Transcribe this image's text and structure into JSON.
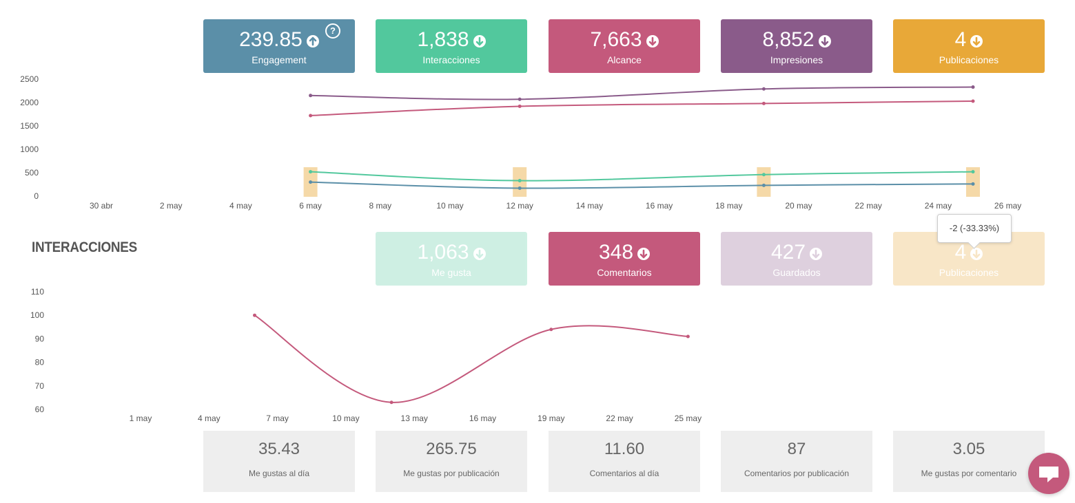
{
  "top_cards": [
    {
      "value": "239.85",
      "label": "Engagement",
      "color": "#5b8fa8",
      "trend": "up",
      "help": "?"
    },
    {
      "value": "1,838",
      "label": "Interacciones",
      "color": "#52c89d",
      "trend": "down"
    },
    {
      "value": "7,663",
      "label": "Alcance",
      "color": "#c4597c",
      "trend": "down"
    },
    {
      "value": "8,852",
      "label": "Impresiones",
      "color": "#8a5b8a",
      "trend": "down"
    },
    {
      "value": "4",
      "label": "Publicaciones",
      "color": "#e8a838",
      "trend": "down"
    }
  ],
  "section_title": "INTERACCIONES",
  "interaction_cards": [
    {
      "value": "1,063",
      "label": "Me gusta",
      "color": "#52c89d",
      "trend": "down",
      "active": false
    },
    {
      "value": "348",
      "label": "Comentarios",
      "color": "#c4597c",
      "trend": "down",
      "active": true
    },
    {
      "value": "427",
      "label": "Guardados",
      "color": "#8a5b8a",
      "trend": "down",
      "active": false
    },
    {
      "value": "4",
      "label": "Publicaciones",
      "color": "#e8a838",
      "trend": "down",
      "active": false
    }
  ],
  "tooltip": "-2 (-33.33%)",
  "stats": [
    {
      "value": "35.43",
      "label": "Me gustas al día"
    },
    {
      "value": "265.75",
      "label": "Me gustas por publicación"
    },
    {
      "value": "11.60",
      "label": "Comentarios al día"
    },
    {
      "value": "87",
      "label": "Comentarios por publicación"
    },
    {
      "value": "3.05",
      "label": "Me gustas por comentario"
    }
  ],
  "chat_icon": "chat-icon",
  "chart_data": [
    {
      "type": "line",
      "ylim": [
        0,
        2500
      ],
      "yticks": [
        0,
        500,
        1000,
        1500,
        2000,
        2500
      ],
      "x_ticks": [
        "30 abr",
        "2 may",
        "4 may",
        "6 may",
        "8 may",
        "10 may",
        "12 may",
        "14 may",
        "16 may",
        "18 may",
        "20 may",
        "22 may",
        "24 may",
        "26 may"
      ],
      "x": [
        "6 may",
        "12 may",
        "19 may",
        "25 may"
      ],
      "highlight_x": [
        "6 may",
        "12 may",
        "19 may",
        "25 may"
      ],
      "highlight_color": "#f5d9a8",
      "series": [
        {
          "values": [
            2150,
            2070,
            2290,
            2330
          ],
          "color": "#8a5b8a"
        },
        {
          "values": [
            1720,
            1920,
            1980,
            2030
          ],
          "color": "#c4597c"
        },
        {
          "values": [
            520,
            330,
            460,
            520
          ],
          "color": "#52c89d"
        },
        {
          "values": [
            300,
            170,
            230,
            260
          ],
          "color": "#5b8fa8"
        }
      ]
    },
    {
      "type": "line",
      "ylim": [
        60,
        110
      ],
      "yticks": [
        60,
        70,
        80,
        90,
        100,
        110
      ],
      "x_ticks": [
        "1 may",
        "4 may",
        "7 may",
        "10 may",
        "13 may",
        "16 may",
        "19 may",
        "22 may",
        "25 may"
      ],
      "x": [
        "6 may",
        "12 may",
        "19 may",
        "25 may"
      ],
      "series": [
        {
          "values": [
            100,
            63,
            94,
            91
          ],
          "color": "#c4597c"
        }
      ]
    }
  ]
}
